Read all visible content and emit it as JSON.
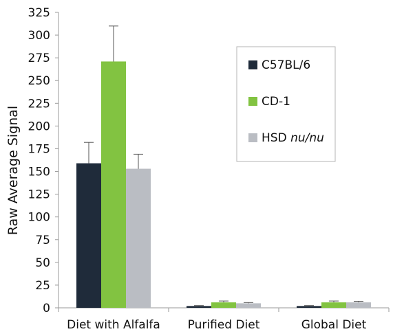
{
  "chart_data": {
    "type": "bar",
    "title": "",
    "xlabel": "",
    "ylabel": "Raw Average Signal",
    "ylim": [
      0,
      325
    ],
    "yticks": [
      "0",
      "25",
      "50",
      "75",
      "100",
      "125",
      "150",
      "175",
      "200",
      "225",
      "250",
      "275",
      "300",
      "325"
    ],
    "categories": [
      "Diet with Alfalfa",
      "Purified Diet",
      "Global Diet"
    ],
    "series": [
      {
        "name": "C57BL/6",
        "label_main": "C57BL/6",
        "label_italic": "",
        "color": "#1f2b3a",
        "values": [
          159,
          2,
          2
        ],
        "errors": [
          23,
          0.5,
          0.5
        ]
      },
      {
        "name": "CD-1",
        "label_main": "CD-1",
        "label_italic": "",
        "color": "#82c341",
        "values": [
          271,
          6,
          6
        ],
        "errors": [
          39,
          1.5,
          1.5
        ]
      },
      {
        "name": "HSD nu/nu",
        "label_main": "HSD ",
        "label_italic": "nu/nu",
        "color": "#babdc3",
        "values": [
          153,
          5,
          6
        ],
        "errors": [
          16,
          0.8,
          1.2
        ]
      }
    ],
    "grid": false,
    "legend_position": "top-right"
  }
}
